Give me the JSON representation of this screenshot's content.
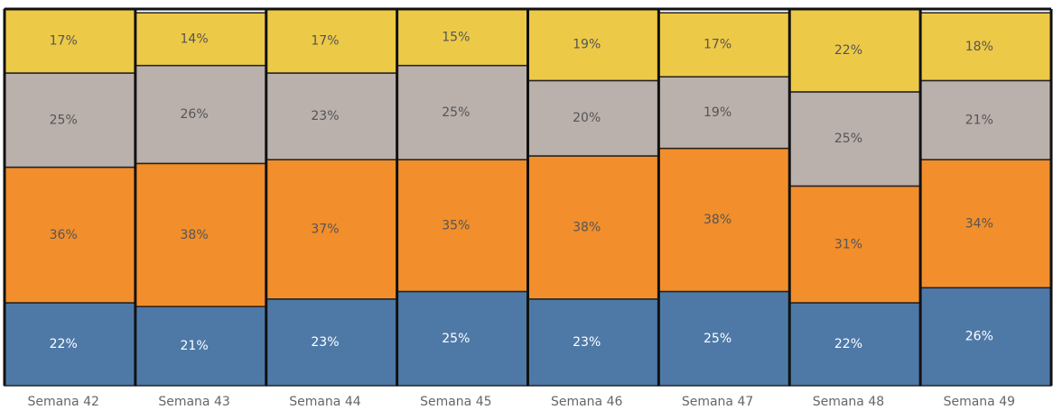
{
  "chart_data": {
    "type": "stacked_bar",
    "categories": [
      "Semana 42",
      "Semana 43",
      "Semana 44",
      "Semana 45",
      "Semana 46",
      "Semana 47",
      "Semana 48",
      "Semana 49"
    ],
    "series": [
      {
        "color": "#4e79a7",
        "values": [
          22,
          21,
          23,
          25,
          23,
          25,
          22,
          26
        ],
        "value_labels": [
          "22%",
          "21%",
          "23%",
          "25%",
          "23%",
          "25%",
          "22%",
          "26%"
        ]
      },
      {
        "color": "#f28e2b",
        "values": [
          36,
          38,
          37,
          35,
          38,
          38,
          31,
          34
        ],
        "value_labels": [
          "36%",
          "38%",
          "37%",
          "35%",
          "38%",
          "38%",
          "31%",
          "34%"
        ]
      },
      {
        "color": "#bab0ac",
        "values": [
          25,
          26,
          23,
          25,
          20,
          19,
          25,
          21
        ],
        "value_labels": [
          "25%",
          "26%",
          "23%",
          "25%",
          "20%",
          "19%",
          "25%",
          "21%"
        ]
      },
      {
        "color": "#edc948",
        "values": [
          17,
          14,
          17,
          15,
          19,
          17,
          22,
          18
        ],
        "value_labels": [
          "17%",
          "14%",
          "17%",
          "15%",
          "19%",
          "17%",
          "22%",
          "18%"
        ]
      }
    ],
    "ylim": [
      0,
      100
    ]
  }
}
